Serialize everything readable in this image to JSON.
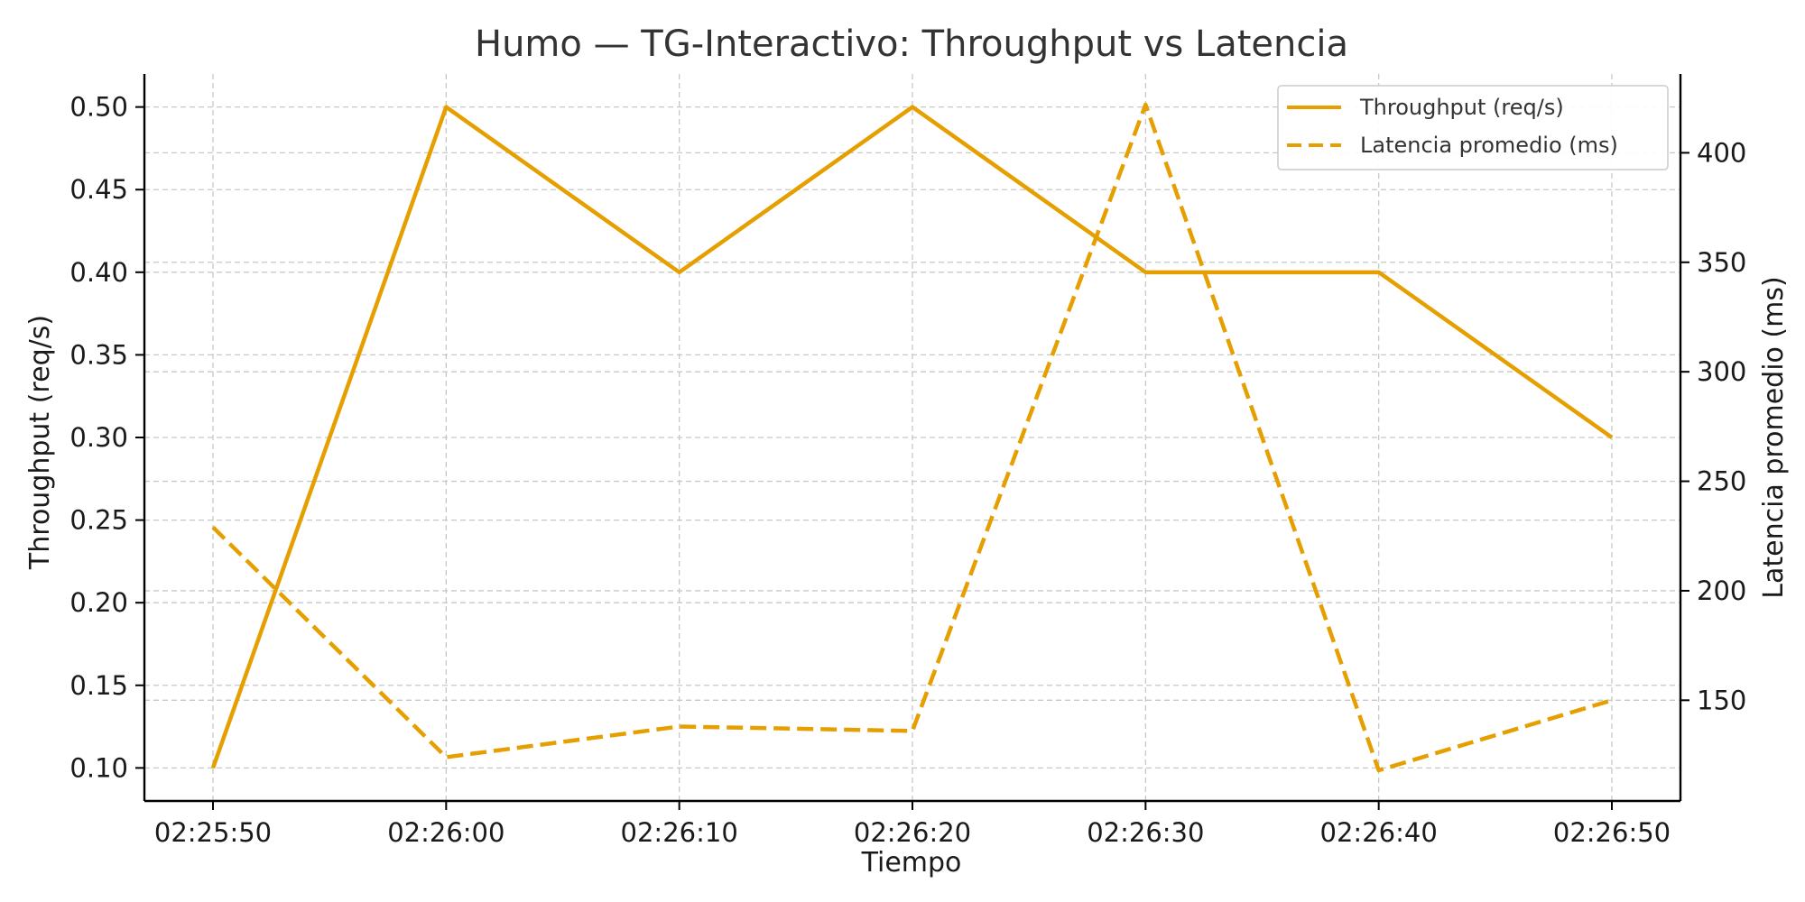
{
  "chart_data": {
    "type": "line",
    "title": "Humo — TG-Interactivo: Throughput vs Latencia",
    "xlabel": "Tiempo",
    "ylabel_left": "Throughput (req/s)",
    "ylabel_right": "Latencia promedio (ms)",
    "x": [
      "02:25:50",
      "02:26:00",
      "02:26:10",
      "02:26:20",
      "02:26:30",
      "02:26:40",
      "02:26:50"
    ],
    "y_left_ticks": [
      "0.10",
      "0.15",
      "0.20",
      "0.25",
      "0.30",
      "0.35",
      "0.40",
      "0.45",
      "0.50"
    ],
    "y_right_ticks": [
      "150",
      "200",
      "250",
      "300",
      "350",
      "400"
    ],
    "y_left_range": [
      0.08,
      0.52
    ],
    "y_right_range": [
      104,
      436
    ],
    "grid": true,
    "legend_position": "top-right",
    "series": [
      {
        "name": "Throughput (req/s)",
        "axis": "left",
        "style": "solid",
        "color": "#E69F00",
        "values": [
          0.1,
          0.5,
          0.4,
          0.5,
          0.4,
          0.4,
          0.3
        ]
      },
      {
        "name": "Latencia promedio (ms)",
        "axis": "right",
        "style": "dashed",
        "color": "#E69F00",
        "values": [
          229,
          124,
          138,
          136,
          422,
          118,
          150
        ]
      }
    ]
  }
}
